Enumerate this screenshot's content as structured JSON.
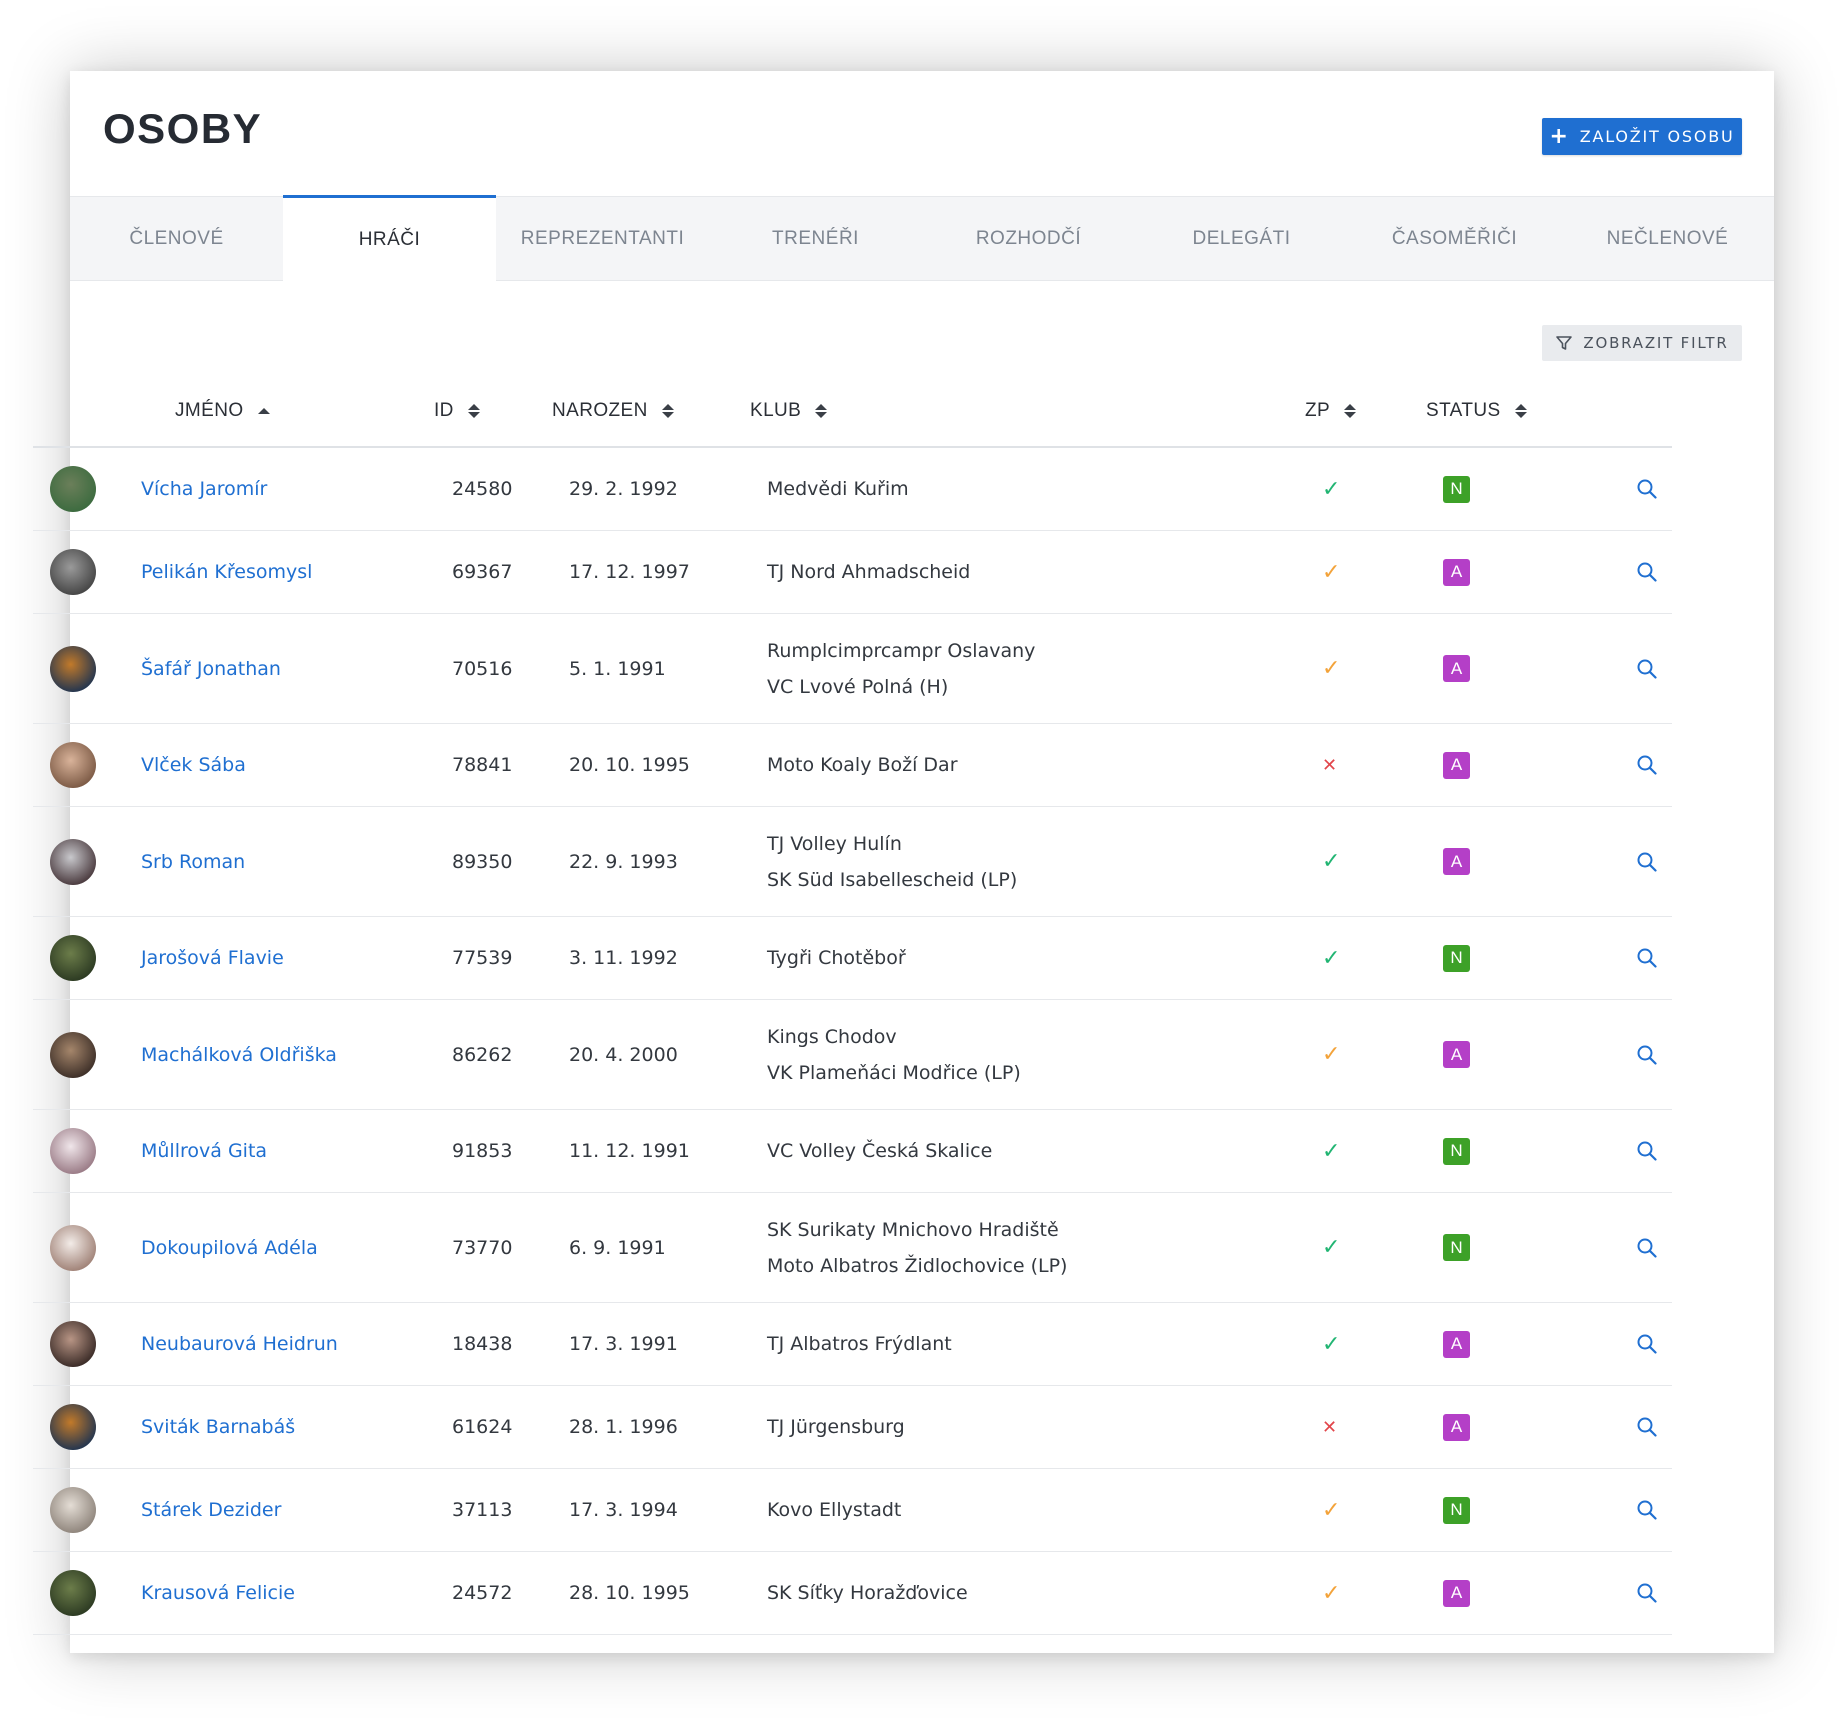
{
  "header": {
    "title": "OSOBY",
    "create_button": "ZALOŽIT OSOBU"
  },
  "tabs": [
    {
      "label": "ČLENOVÉ",
      "active": false
    },
    {
      "label": "HRÁČI",
      "active": true
    },
    {
      "label": "REPREZENTANTI",
      "active": false
    },
    {
      "label": "TRENÉŘI",
      "active": false
    },
    {
      "label": "ROZHODČÍ",
      "active": false
    },
    {
      "label": "DELEGÁTI",
      "active": false
    },
    {
      "label": "ČASOMĚŘIČI",
      "active": false
    },
    {
      "label": "NEČLENOVÉ",
      "active": false
    }
  ],
  "filter_button": "ZOBRAZIT FILTR",
  "columns": {
    "name": "JMÉNO",
    "id": "ID",
    "born": "NAROZEN",
    "club": "KLUB",
    "zp": "ZP",
    "status": "STATUS"
  },
  "colors": {
    "accent": "#1f6fd1",
    "ok": "#22b573",
    "warn": "#f3a33a",
    "error": "#e2464b",
    "status_N": "#3da128",
    "status_A": "#b43fc7"
  },
  "rows": [
    {
      "name": "Vícha Jaromír",
      "id": "24580",
      "born": "29. 2. 1992",
      "clubs": [
        "Medvědi Kuřim"
      ],
      "zp": "ok",
      "status": "N",
      "avatar": [
        "#6b7f5a",
        "#3c6b3f"
      ]
    },
    {
      "name": "Pelikán Křesomysl",
      "id": "69367",
      "born": "17. 12. 1997",
      "clubs": [
        "TJ Nord Ahmadscheid"
      ],
      "zp": "warn",
      "status": "A",
      "avatar": [
        "#9a9a9a",
        "#454545"
      ]
    },
    {
      "name": "Šafář Jonathan",
      "id": "70516",
      "born": "5. 1. 1991",
      "clubs": [
        "Rumplcimprcampr Oslavany",
        "VC Lvové Polná (H)"
      ],
      "zp": "warn",
      "status": "A",
      "avatar": [
        "#c27a2a",
        "#23354f"
      ]
    },
    {
      "name": "Vlček Sába",
      "id": "78841",
      "born": "20. 10. 1995",
      "clubs": [
        "Moto Koaly Boží Dar"
      ],
      "zp": "no",
      "status": "A",
      "avatar": [
        "#d9b39a",
        "#7c5a45"
      ]
    },
    {
      "name": "Srb Roman",
      "id": "89350",
      "born": "22. 9. 1993",
      "clubs": [
        "TJ Volley Hulín",
        "SK Süd Isabellescheid (LP)"
      ],
      "zp": "ok",
      "status": "A",
      "avatar": [
        "#c8c8cc",
        "#4a3a3e"
      ]
    },
    {
      "name": "Jarošová Flavie",
      "id": "77539",
      "born": "3. 11. 1992",
      "clubs": [
        "Tygři Chotěboř"
      ],
      "zp": "ok",
      "status": "N",
      "avatar": [
        "#6c7d4a",
        "#2c3a22"
      ]
    },
    {
      "name": "Machálková Oldřiška",
      "id": "86262",
      "born": "20. 4. 2000",
      "clubs": [
        "Kings Chodov",
        "VK Plameňáci Modřice (LP)"
      ],
      "zp": "warn",
      "status": "A",
      "avatar": [
        "#a5866b",
        "#3d2f28"
      ]
    },
    {
      "name": "Můllrová Gita",
      "id": "91853",
      "born": "11. 12. 1991",
      "clubs": [
        "VC Volley Česká Skalice"
      ],
      "zp": "ok",
      "status": "N",
      "avatar": [
        "#f0e6ea",
        "#9a7b86"
      ]
    },
    {
      "name": "Dokoupilová Adéla",
      "id": "73770",
      "born": "6. 9. 1991",
      "clubs": [
        "SK Surikaty Mnichovo Hradiště",
        "Moto Albatros Židlochovice (LP)"
      ],
      "zp": "ok",
      "status": "N",
      "avatar": [
        "#f3ece8",
        "#a08277"
      ]
    },
    {
      "name": "Neubaurová Heidrun",
      "id": "18438",
      "born": "17. 3. 1991",
      "clubs": [
        "TJ Albatros Frýdlant"
      ],
      "zp": "ok",
      "status": "A",
      "avatar": [
        "#b89585",
        "#3a2b27"
      ]
    },
    {
      "name": "Sviták Barnabáš",
      "id": "61624",
      "born": "28. 1. 1996",
      "clubs": [
        "TJ Jürgensburg"
      ],
      "zp": "no",
      "status": "A",
      "avatar": [
        "#c27a2a",
        "#23354f"
      ]
    },
    {
      "name": "Stárek Dezider",
      "id": "37113",
      "born": "17. 3. 1994",
      "clubs": [
        "Kovo Ellystadt"
      ],
      "zp": "warn",
      "status": "N",
      "avatar": [
        "#e4ddd5",
        "#8f857c"
      ]
    },
    {
      "name": "Krausová Felicie",
      "id": "24572",
      "born": "28. 10. 1995",
      "clubs": [
        "SK Síťky Horažďovice"
      ],
      "zp": "warn",
      "status": "A",
      "avatar": [
        "#6c7d4a",
        "#2c3a22"
      ]
    }
  ]
}
